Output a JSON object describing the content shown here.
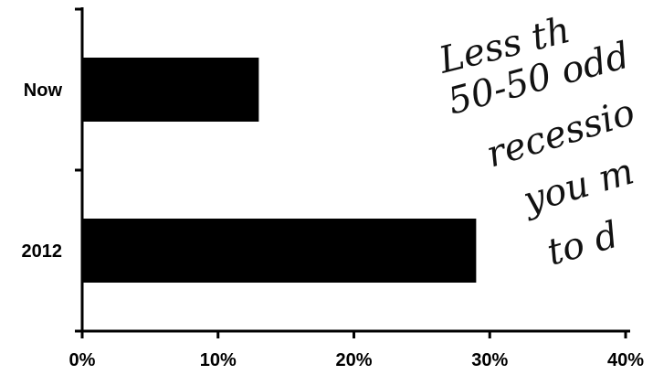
{
  "chart_data": {
    "type": "bar",
    "orientation": "horizontal",
    "categories": [
      "Now",
      "2012"
    ],
    "values": [
      13,
      29
    ],
    "x_ticks": [
      "0%",
      "10%",
      "20%",
      "30%",
      "40%"
    ],
    "xlim": [
      0,
      40
    ],
    "grid": false,
    "bar_color": "#000000",
    "annotation_lines": [
      "Less th",
      "50-50 odd",
      "recessio",
      "you m",
      "to d"
    ]
  }
}
